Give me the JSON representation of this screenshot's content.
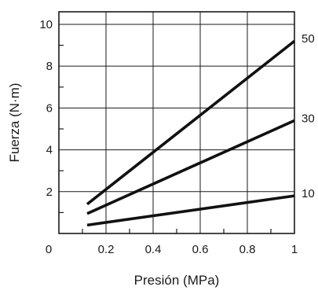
{
  "chart_data": {
    "type": "line",
    "title": "",
    "xlabel": "Presión (MPa)",
    "ylabel": "Fuerza (N·m)",
    "xlim": [
      0,
      1
    ],
    "ylim": [
      0,
      10.6
    ],
    "x_tick_labels": [
      "0",
      "0.2",
      "0.4",
      "0.6",
      "0.8",
      "1"
    ],
    "x_tick_values": [
      0,
      0.2,
      0.4,
      0.6,
      0.8,
      1
    ],
    "y_tick_labels": [
      "2",
      "4",
      "6",
      "8",
      "10"
    ],
    "y_tick_values": [
      2,
      4,
      6,
      8,
      10
    ],
    "grid": true,
    "series_labels_position": "right",
    "series": [
      {
        "name": "50",
        "x": [
          0.12,
          1.0
        ],
        "y": [
          1.4,
          9.2
        ]
      },
      {
        "name": "30",
        "x": [
          0.12,
          1.0
        ],
        "y": [
          0.95,
          5.4
        ]
      },
      {
        "name": "10",
        "x": [
          0.12,
          1.0
        ],
        "y": [
          0.4,
          1.8
        ]
      }
    ]
  }
}
